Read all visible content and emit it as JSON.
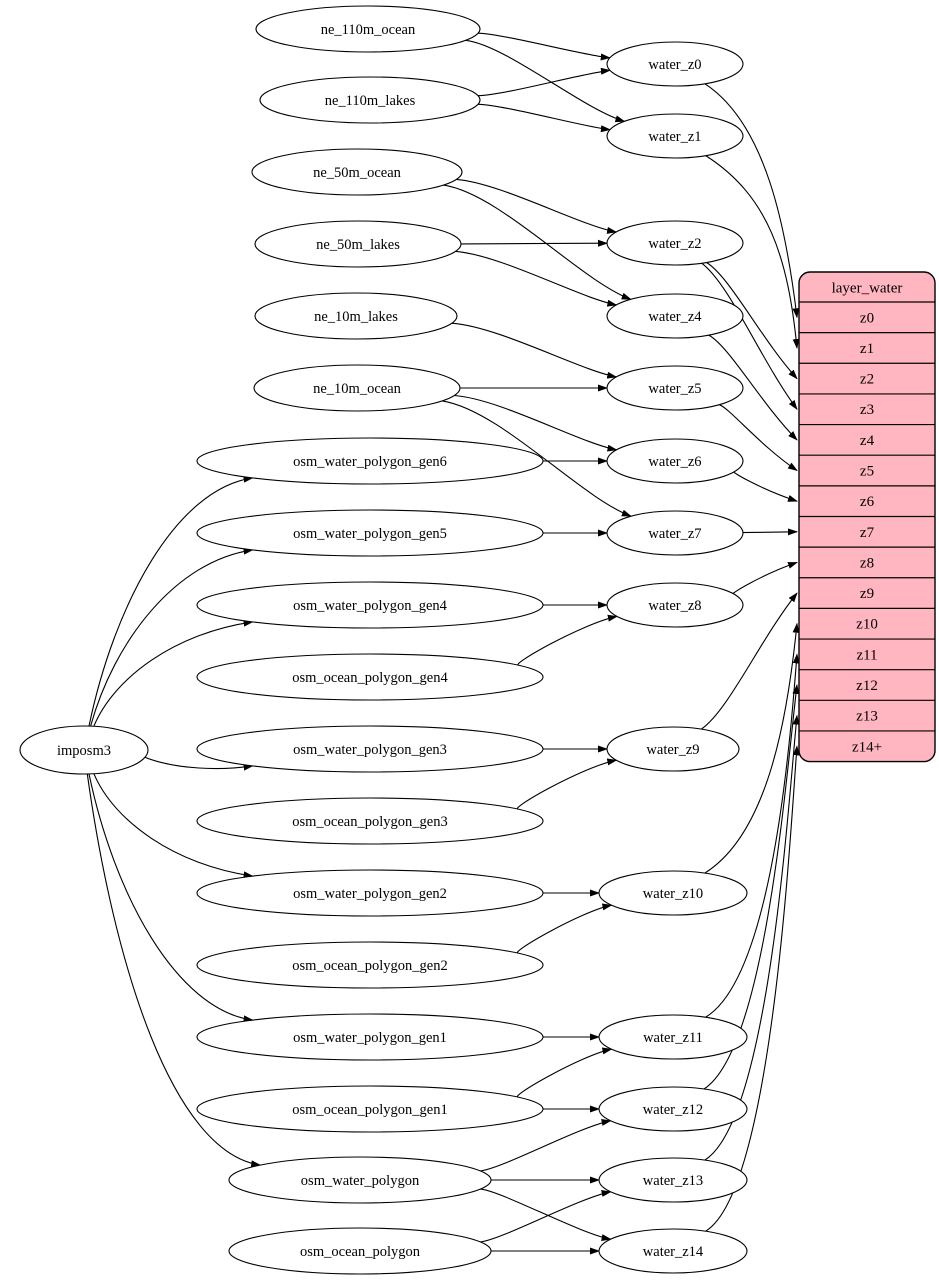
{
  "diagram": {
    "background": "#ffffff",
    "edge_color": "#000000",
    "node_fill": "#ffffff",
    "node_stroke": "#000000",
    "nodes": [
      {
        "id": "imposm3",
        "label": "imposm3"
      },
      {
        "id": "ne_110m_ocean",
        "label": "ne_110m_ocean"
      },
      {
        "id": "ne_110m_lakes",
        "label": "ne_110m_lakes"
      },
      {
        "id": "ne_50m_ocean",
        "label": "ne_50m_ocean"
      },
      {
        "id": "ne_50m_lakes",
        "label": "ne_50m_lakes"
      },
      {
        "id": "ne_10m_lakes",
        "label": "ne_10m_lakes"
      },
      {
        "id": "ne_10m_ocean",
        "label": "ne_10m_ocean"
      },
      {
        "id": "osm_water_polygon_gen6",
        "label": "osm_water_polygon_gen6"
      },
      {
        "id": "osm_water_polygon_gen5",
        "label": "osm_water_polygon_gen5"
      },
      {
        "id": "osm_water_polygon_gen4",
        "label": "osm_water_polygon_gen4"
      },
      {
        "id": "osm_ocean_polygon_gen4",
        "label": "osm_ocean_polygon_gen4"
      },
      {
        "id": "osm_water_polygon_gen3",
        "label": "osm_water_polygon_gen3"
      },
      {
        "id": "osm_ocean_polygon_gen3",
        "label": "osm_ocean_polygon_gen3"
      },
      {
        "id": "osm_water_polygon_gen2",
        "label": "osm_water_polygon_gen2"
      },
      {
        "id": "osm_ocean_polygon_gen2",
        "label": "osm_ocean_polygon_gen2"
      },
      {
        "id": "osm_water_polygon_gen1",
        "label": "osm_water_polygon_gen1"
      },
      {
        "id": "osm_ocean_polygon_gen1",
        "label": "osm_ocean_polygon_gen1"
      },
      {
        "id": "osm_water_polygon",
        "label": "osm_water_polygon"
      },
      {
        "id": "osm_ocean_polygon",
        "label": "osm_ocean_polygon"
      },
      {
        "id": "water_z0",
        "label": "water_z0"
      },
      {
        "id": "water_z1",
        "label": "water_z1"
      },
      {
        "id": "water_z2",
        "label": "water_z2"
      },
      {
        "id": "water_z4",
        "label": "water_z4"
      },
      {
        "id": "water_z5",
        "label": "water_z5"
      },
      {
        "id": "water_z6",
        "label": "water_z6"
      },
      {
        "id": "water_z7",
        "label": "water_z7"
      },
      {
        "id": "water_z8",
        "label": "water_z8"
      },
      {
        "id": "water_z9",
        "label": "water_z9"
      },
      {
        "id": "water_z10",
        "label": "water_z10"
      },
      {
        "id": "water_z11",
        "label": "water_z11"
      },
      {
        "id": "water_z12",
        "label": "water_z12"
      },
      {
        "id": "water_z13",
        "label": "water_z13"
      },
      {
        "id": "water_z14",
        "label": "water_z14"
      }
    ],
    "edges": [
      {
        "from": "ne_110m_ocean",
        "to": "water_z0"
      },
      {
        "from": "ne_110m_ocean",
        "to": "water_z1"
      },
      {
        "from": "ne_110m_lakes",
        "to": "water_z0"
      },
      {
        "from": "ne_110m_lakes",
        "to": "water_z1"
      },
      {
        "from": "ne_50m_ocean",
        "to": "water_z2"
      },
      {
        "from": "ne_50m_ocean",
        "to": "water_z4"
      },
      {
        "from": "ne_50m_lakes",
        "to": "water_z2"
      },
      {
        "from": "ne_50m_lakes",
        "to": "water_z4"
      },
      {
        "from": "ne_10m_lakes",
        "to": "water_z5"
      },
      {
        "from": "ne_10m_ocean",
        "to": "water_z5"
      },
      {
        "from": "ne_10m_ocean",
        "to": "water_z6"
      },
      {
        "from": "ne_10m_ocean",
        "to": "water_z7"
      },
      {
        "from": "osm_water_polygon_gen6",
        "to": "water_z6"
      },
      {
        "from": "osm_water_polygon_gen5",
        "to": "water_z7"
      },
      {
        "from": "osm_water_polygon_gen4",
        "to": "water_z8"
      },
      {
        "from": "osm_ocean_polygon_gen4",
        "to": "water_z8"
      },
      {
        "from": "osm_water_polygon_gen3",
        "to": "water_z9"
      },
      {
        "from": "osm_ocean_polygon_gen3",
        "to": "water_z9"
      },
      {
        "from": "osm_water_polygon_gen2",
        "to": "water_z10"
      },
      {
        "from": "osm_ocean_polygon_gen2",
        "to": "water_z10"
      },
      {
        "from": "osm_water_polygon_gen1",
        "to": "water_z11"
      },
      {
        "from": "osm_ocean_polygon_gen1",
        "to": "water_z11"
      },
      {
        "from": "osm_ocean_polygon_gen1",
        "to": "water_z12"
      },
      {
        "from": "osm_water_polygon",
        "to": "water_z12"
      },
      {
        "from": "osm_water_polygon",
        "to": "water_z13"
      },
      {
        "from": "osm_water_polygon",
        "to": "water_z14"
      },
      {
        "from": "osm_ocean_polygon",
        "to": "water_z13"
      },
      {
        "from": "osm_ocean_polygon",
        "to": "water_z14"
      },
      {
        "from": "imposm3",
        "to": "osm_water_polygon_gen6"
      },
      {
        "from": "imposm3",
        "to": "osm_water_polygon_gen5"
      },
      {
        "from": "imposm3",
        "to": "osm_water_polygon_gen4"
      },
      {
        "from": "imposm3",
        "to": "osm_water_polygon_gen3"
      },
      {
        "from": "imposm3",
        "to": "osm_water_polygon_gen2"
      },
      {
        "from": "imposm3",
        "to": "osm_water_polygon_gen1"
      },
      {
        "from": "imposm3",
        "to": "osm_water_polygon"
      },
      {
        "from": "water_z0",
        "to": "layer_water:z0"
      },
      {
        "from": "water_z1",
        "to": "layer_water:z1"
      },
      {
        "from": "water_z2",
        "to": "layer_water:z2"
      },
      {
        "from": "water_z2",
        "to": "layer_water:z3"
      },
      {
        "from": "water_z4",
        "to": "layer_water:z4"
      },
      {
        "from": "water_z5",
        "to": "layer_water:z5"
      },
      {
        "from": "water_z6",
        "to": "layer_water:z6"
      },
      {
        "from": "water_z7",
        "to": "layer_water:z7"
      },
      {
        "from": "water_z8",
        "to": "layer_water:z8"
      },
      {
        "from": "water_z9",
        "to": "layer_water:z9"
      },
      {
        "from": "water_z10",
        "to": "layer_water:z10"
      },
      {
        "from": "water_z11",
        "to": "layer_water:z11"
      },
      {
        "from": "water_z12",
        "to": "layer_water:z12"
      },
      {
        "from": "water_z13",
        "to": "layer_water:z13"
      },
      {
        "from": "water_z14",
        "to": "layer_water:z14+"
      }
    ],
    "table": {
      "id": "layer_water",
      "title": "layer_water",
      "fill": "#ffb6c1",
      "stroke": "#000000",
      "rows": [
        "z0",
        "z1",
        "z2",
        "z3",
        "z4",
        "z5",
        "z6",
        "z7",
        "z8",
        "z9",
        "z10",
        "z11",
        "z12",
        "z13",
        "z14+"
      ]
    }
  }
}
